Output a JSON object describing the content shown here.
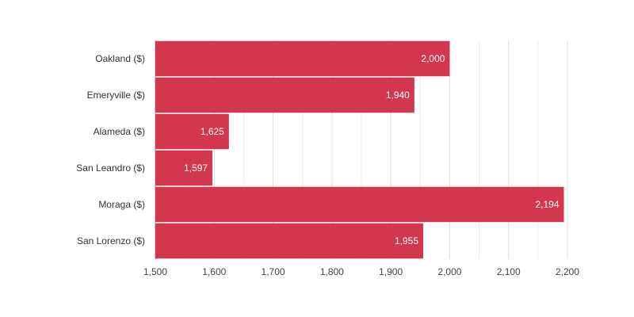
{
  "chart_data": {
    "type": "bar",
    "orientation": "horizontal",
    "categories": [
      "Oakland ($)",
      "Emeryville ($)",
      "Alameda ($)",
      "San Leandro ($)",
      "Moraga ($)",
      "San Lorenzo ($)"
    ],
    "values": [
      2000,
      1940,
      1625,
      1597,
      2194,
      1955
    ],
    "value_labels": [
      "2,000",
      "1,940",
      "1,625",
      "1,597",
      "2,194",
      "1,955"
    ],
    "x_ticks": [
      1500,
      1600,
      1700,
      1800,
      1900,
      2000,
      2100,
      2200
    ],
    "x_tick_labels": [
      "1,500",
      "1,600",
      "1,700",
      "1,800",
      "1,900",
      "2,000",
      "2,100",
      "2,200"
    ],
    "xlim": [
      1500,
      2200
    ],
    "grid": true,
    "bar_color": "#d3374d"
  }
}
